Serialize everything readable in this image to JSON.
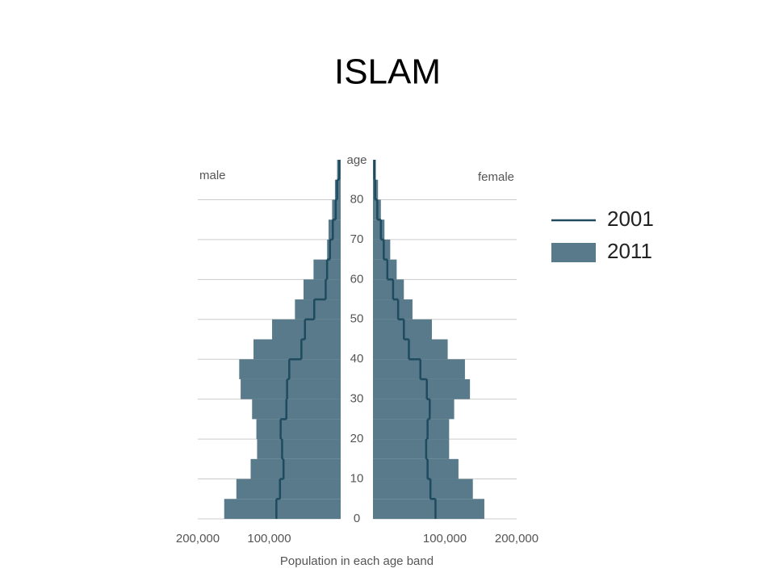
{
  "chart_data": {
    "type": "population-pyramid",
    "title": "ISLAM",
    "left_label": "male",
    "right_label": "female",
    "ylabel": "age",
    "xlabel": "Population in each age band",
    "bins": [
      0,
      5,
      10,
      15,
      20,
      25,
      30,
      35,
      40,
      45,
      50,
      55,
      60,
      65,
      70,
      75,
      80,
      85,
      90
    ],
    "ylim": [
      0,
      90
    ],
    "yticks": [
      0,
      10,
      20,
      30,
      40,
      50,
      60,
      70,
      80
    ],
    "xlim": [
      0,
      200000
    ],
    "xticks": [
      {
        "value": 100000,
        "label": "100,000"
      },
      {
        "value": 200000,
        "label": "200,000"
      }
    ],
    "grid": true,
    "series": [
      {
        "name": "2001",
        "style": "line",
        "color": "#1e4b5f",
        "male": [
          90000,
          85000,
          80000,
          82000,
          84000,
          76000,
          75000,
          72000,
          55000,
          50000,
          37000,
          21000,
          19000,
          15000,
          11000,
          7000,
          5000,
          2000
        ],
        "female": [
          87000,
          80000,
          76000,
          74000,
          76000,
          79000,
          75000,
          66000,
          50000,
          43000,
          35000,
          28000,
          20000,
          15000,
          11000,
          6000,
          3000,
          2000
        ]
      },
      {
        "name": "2011",
        "style": "bar",
        "color": "#587a8a",
        "male": [
          163000,
          146000,
          126000,
          117000,
          118000,
          124000,
          140000,
          142000,
          122000,
          96000,
          64000,
          52000,
          38000,
          19000,
          17000,
          12000,
          8000,
          5000
        ],
        "female": [
          155000,
          139000,
          119000,
          106000,
          106000,
          113000,
          135000,
          128000,
          104000,
          82000,
          55000,
          43000,
          33000,
          24000,
          16000,
          11000,
          7000,
          4000
        ]
      }
    ]
  }
}
